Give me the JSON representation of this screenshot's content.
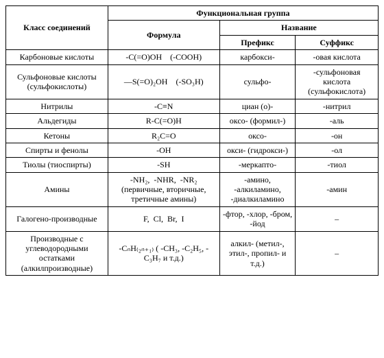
{
  "headers": {
    "class": "Класс соединений",
    "group": "Функциональная группа",
    "formula": "Формула",
    "name": "Название",
    "prefix": "Префикс",
    "suffix": "Суффикс"
  },
  "rows": [
    {
      "class": "Карбоновые кислоты",
      "formula": "-C(=O)OH (-COOH)",
      "prefix": "карбокси-",
      "suffix": "-овая кислота"
    },
    {
      "class": "Сульфоновые кислоты (сульфокислоты)",
      "formula": "—S(=O)₂OH (-SO₃H)",
      "prefix": "сульфо-",
      "suffix": "-сульфоновая кислота (сульфокислота)"
    },
    {
      "class": "Нитрилы",
      "formula": "-C≡N",
      "prefix": "циан (о)-",
      "suffix": "-нитрил"
    },
    {
      "class": "Альдегиды",
      "formula": "R-C(=O)H",
      "prefix": "оксо- (формил-)",
      "suffix": "-аль"
    },
    {
      "class": "Кетоны",
      "formula": "R₂C=O",
      "prefix": "оксо-",
      "suffix": "-он"
    },
    {
      "class": "Спирты и фенолы",
      "formula": "-OH",
      "prefix": "окси- (гидрокси-)",
      "suffix": "-ол"
    },
    {
      "class": "Тиолы (тиоспирты)",
      "formula": "-SH",
      "prefix": "-меркапто-",
      "suffix": "-тиол"
    },
    {
      "class": "Амины",
      "formula": "-NH₂,  -NHR,  -NR₂ (первичные, вторичные, третичные амины)",
      "prefix": "-амино, -алкиламино, -диалкиламино",
      "suffix": "-амин"
    },
    {
      "class": "Галогено-производные",
      "formula": "F,  Cl,  Br,  I",
      "prefix": "-фтор, -хлор, -бром, -йод",
      "suffix": "–"
    },
    {
      "class": "Производные с углеводородными остатками (алкилпроизводные)",
      "formula": "-CₙH₍₂ₙ₊₁₎ ( -CH₃, -C₂H₅, -C₃H₇ и т.д.)",
      "prefix": "алкил- (метил-, этил-, пропил- и т.д.)",
      "suffix": "–"
    }
  ]
}
